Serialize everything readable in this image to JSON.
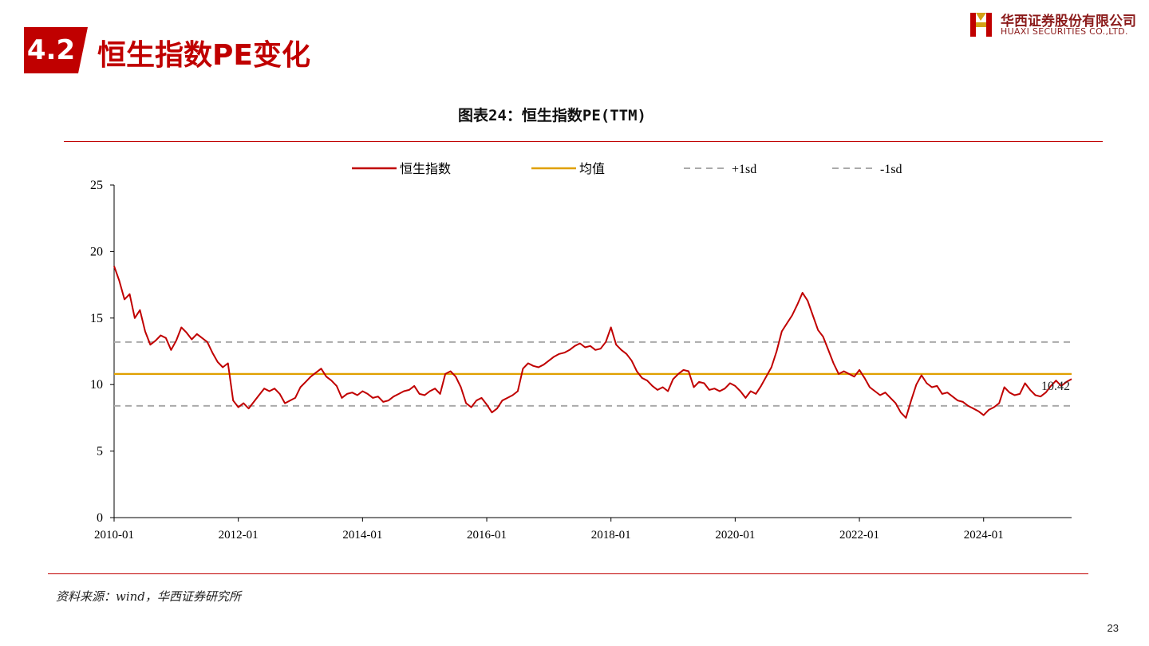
{
  "header": {
    "section_number": "4.2",
    "section_title": "恒生指数PE变化",
    "logo_cn": "华西证券股份有限公司",
    "logo_en": "HUAXI SECURITIES CO.,LTD."
  },
  "chart_title": "图表24：恒生指数PE(TTM)",
  "source": "资料来源：wind，华西证券研究所",
  "page_number": "23",
  "chart_data": {
    "type": "line",
    "title": "图表24：恒生指数PE(TTM)",
    "xlabel": "",
    "ylabel": "",
    "ylim": [
      0,
      25
    ],
    "yticks": [
      "0",
      "5",
      "10",
      "15",
      "20",
      "25"
    ],
    "xticks": [
      "2010-01",
      "2012-01",
      "2014-01",
      "2016-01",
      "2018-01",
      "2020-01",
      "2022-01",
      "2024-01"
    ],
    "xrange": [
      "2010-01",
      "2025-06"
    ],
    "grid": false,
    "legend_position": "top",
    "last_value_label": "10.42",
    "series": [
      {
        "name": "恒生指数",
        "color": "#c00000",
        "style": "solid",
        "points": [
          [
            "2010-01",
            18.9
          ],
          [
            "2010-02",
            17.8
          ],
          [
            "2010-03",
            16.4
          ],
          [
            "2010-04",
            16.8
          ],
          [
            "2010-05",
            15.0
          ],
          [
            "2010-06",
            15.6
          ],
          [
            "2010-07",
            14.0
          ],
          [
            "2010-08",
            13.0
          ],
          [
            "2010-09",
            13.3
          ],
          [
            "2010-10",
            13.7
          ],
          [
            "2010-11",
            13.5
          ],
          [
            "2010-12",
            12.6
          ],
          [
            "2011-01",
            13.3
          ],
          [
            "2011-02",
            14.3
          ],
          [
            "2011-03",
            13.9
          ],
          [
            "2011-04",
            13.4
          ],
          [
            "2011-05",
            13.8
          ],
          [
            "2011-06",
            13.5
          ],
          [
            "2011-07",
            13.2
          ],
          [
            "2011-08",
            12.4
          ],
          [
            "2011-09",
            11.7
          ],
          [
            "2011-10",
            11.3
          ],
          [
            "2011-11",
            11.6
          ],
          [
            "2011-12",
            8.8
          ],
          [
            "2012-01",
            8.3
          ],
          [
            "2012-02",
            8.6
          ],
          [
            "2012-03",
            8.2
          ],
          [
            "2012-04",
            8.7
          ],
          [
            "2012-05",
            9.2
          ],
          [
            "2012-06",
            9.7
          ],
          [
            "2012-07",
            9.5
          ],
          [
            "2012-08",
            9.7
          ],
          [
            "2012-09",
            9.3
          ],
          [
            "2012-10",
            8.6
          ],
          [
            "2012-11",
            8.8
          ],
          [
            "2012-12",
            9.0
          ],
          [
            "2013-01",
            9.8
          ],
          [
            "2013-02",
            10.2
          ],
          [
            "2013-03",
            10.6
          ],
          [
            "2013-04",
            10.9
          ],
          [
            "2013-05",
            11.2
          ],
          [
            "2013-06",
            10.6
          ],
          [
            "2013-07",
            10.3
          ],
          [
            "2013-08",
            9.9
          ],
          [
            "2013-09",
            9.0
          ],
          [
            "2013-10",
            9.3
          ],
          [
            "2013-11",
            9.4
          ],
          [
            "2013-12",
            9.2
          ],
          [
            "2014-01",
            9.5
          ],
          [
            "2014-02",
            9.3
          ],
          [
            "2014-03",
            9.0
          ],
          [
            "2014-04",
            9.1
          ],
          [
            "2014-05",
            8.7
          ],
          [
            "2014-06",
            8.8
          ],
          [
            "2014-07",
            9.1
          ],
          [
            "2014-08",
            9.3
          ],
          [
            "2014-09",
            9.5
          ],
          [
            "2014-10",
            9.6
          ],
          [
            "2014-11",
            9.9
          ],
          [
            "2014-12",
            9.3
          ],
          [
            "2015-01",
            9.2
          ],
          [
            "2015-02",
            9.5
          ],
          [
            "2015-03",
            9.7
          ],
          [
            "2015-04",
            9.3
          ],
          [
            "2015-05",
            10.8
          ],
          [
            "2015-06",
            11.0
          ],
          [
            "2015-07",
            10.6
          ],
          [
            "2015-08",
            9.8
          ],
          [
            "2015-09",
            8.6
          ],
          [
            "2015-10",
            8.3
          ],
          [
            "2015-11",
            8.8
          ],
          [
            "2015-12",
            9.0
          ],
          [
            "2016-01",
            8.5
          ],
          [
            "2016-02",
            7.9
          ],
          [
            "2016-03",
            8.2
          ],
          [
            "2016-04",
            8.8
          ],
          [
            "2016-05",
            9.0
          ],
          [
            "2016-06",
            9.2
          ],
          [
            "2016-07",
            9.5
          ],
          [
            "2016-08",
            11.2
          ],
          [
            "2016-09",
            11.6
          ],
          [
            "2016-10",
            11.4
          ],
          [
            "2016-11",
            11.3
          ],
          [
            "2016-12",
            11.5
          ],
          [
            "2017-01",
            11.8
          ],
          [
            "2017-02",
            12.1
          ],
          [
            "2017-03",
            12.3
          ],
          [
            "2017-04",
            12.4
          ],
          [
            "2017-05",
            12.6
          ],
          [
            "2017-06",
            12.9
          ],
          [
            "2017-07",
            13.1
          ],
          [
            "2017-08",
            12.8
          ],
          [
            "2017-09",
            12.9
          ],
          [
            "2017-10",
            12.6
          ],
          [
            "2017-11",
            12.7
          ],
          [
            "2017-12",
            13.2
          ],
          [
            "2018-01",
            14.3
          ],
          [
            "2018-02",
            13.0
          ],
          [
            "2018-03",
            12.6
          ],
          [
            "2018-04",
            12.3
          ],
          [
            "2018-05",
            11.8
          ],
          [
            "2018-06",
            11.0
          ],
          [
            "2018-07",
            10.5
          ],
          [
            "2018-08",
            10.3
          ],
          [
            "2018-09",
            9.9
          ],
          [
            "2018-10",
            9.6
          ],
          [
            "2018-11",
            9.8
          ],
          [
            "2018-12",
            9.5
          ],
          [
            "2019-01",
            10.4
          ],
          [
            "2019-02",
            10.8
          ],
          [
            "2019-03",
            11.1
          ],
          [
            "2019-04",
            11.0
          ],
          [
            "2019-05",
            9.8
          ],
          [
            "2019-06",
            10.2
          ],
          [
            "2019-07",
            10.1
          ],
          [
            "2019-08",
            9.6
          ],
          [
            "2019-09",
            9.7
          ],
          [
            "2019-10",
            9.5
          ],
          [
            "2019-11",
            9.7
          ],
          [
            "2019-12",
            10.1
          ],
          [
            "2020-01",
            9.9
          ],
          [
            "2020-02",
            9.5
          ],
          [
            "2020-03",
            9.0
          ],
          [
            "2020-04",
            9.5
          ],
          [
            "2020-05",
            9.3
          ],
          [
            "2020-06",
            9.9
          ],
          [
            "2020-07",
            10.6
          ],
          [
            "2020-08",
            11.3
          ],
          [
            "2020-09",
            12.5
          ],
          [
            "2020-10",
            14.0
          ],
          [
            "2020-11",
            14.6
          ],
          [
            "2020-12",
            15.2
          ],
          [
            "2021-01",
            16.0
          ],
          [
            "2021-02",
            16.9
          ],
          [
            "2021-03",
            16.3
          ],
          [
            "2021-04",
            15.2
          ],
          [
            "2021-05",
            14.1
          ],
          [
            "2021-06",
            13.6
          ],
          [
            "2021-07",
            12.6
          ],
          [
            "2021-08",
            11.6
          ],
          [
            "2021-09",
            10.8
          ],
          [
            "2021-10",
            11.0
          ],
          [
            "2021-11",
            10.8
          ],
          [
            "2021-12",
            10.6
          ],
          [
            "2022-01",
            11.1
          ],
          [
            "2022-02",
            10.5
          ],
          [
            "2022-03",
            9.8
          ],
          [
            "2022-04",
            9.5
          ],
          [
            "2022-05",
            9.2
          ],
          [
            "2022-06",
            9.4
          ],
          [
            "2022-07",
            9.0
          ],
          [
            "2022-08",
            8.6
          ],
          [
            "2022-09",
            7.9
          ],
          [
            "2022-10",
            7.5
          ],
          [
            "2022-11",
            8.8
          ],
          [
            "2022-12",
            10.0
          ],
          [
            "2023-01",
            10.7
          ],
          [
            "2023-02",
            10.1
          ],
          [
            "2023-03",
            9.8
          ],
          [
            "2023-04",
            9.9
          ],
          [
            "2023-05",
            9.3
          ],
          [
            "2023-06",
            9.4
          ],
          [
            "2023-07",
            9.1
          ],
          [
            "2023-08",
            8.8
          ],
          [
            "2023-09",
            8.7
          ],
          [
            "2023-10",
            8.4
          ],
          [
            "2023-11",
            8.2
          ],
          [
            "2023-12",
            8.0
          ],
          [
            "2024-01",
            7.7
          ],
          [
            "2024-02",
            8.1
          ],
          [
            "2024-03",
            8.3
          ],
          [
            "2024-04",
            8.6
          ],
          [
            "2024-05",
            9.8
          ],
          [
            "2024-06",
            9.4
          ],
          [
            "2024-07",
            9.2
          ],
          [
            "2024-08",
            9.3
          ],
          [
            "2024-09",
            10.1
          ],
          [
            "2024-10",
            9.6
          ],
          [
            "2024-11",
            9.2
          ],
          [
            "2024-12",
            9.1
          ],
          [
            "2025-01",
            9.4
          ],
          [
            "2025-02",
            9.9
          ],
          [
            "2025-03",
            10.3
          ],
          [
            "2025-04",
            9.9
          ],
          [
            "2025-05",
            10.2
          ],
          [
            "2025-06",
            10.42
          ]
        ]
      },
      {
        "name": "均值",
        "color": "#e0a000",
        "style": "solid",
        "value": 10.8
      },
      {
        "name": "+1sd",
        "color": "#aaaaaa",
        "style": "dashed",
        "value": 13.2
      },
      {
        "name": "-1sd",
        "color": "#aaaaaa",
        "style": "dashed",
        "value": 8.4
      }
    ]
  }
}
